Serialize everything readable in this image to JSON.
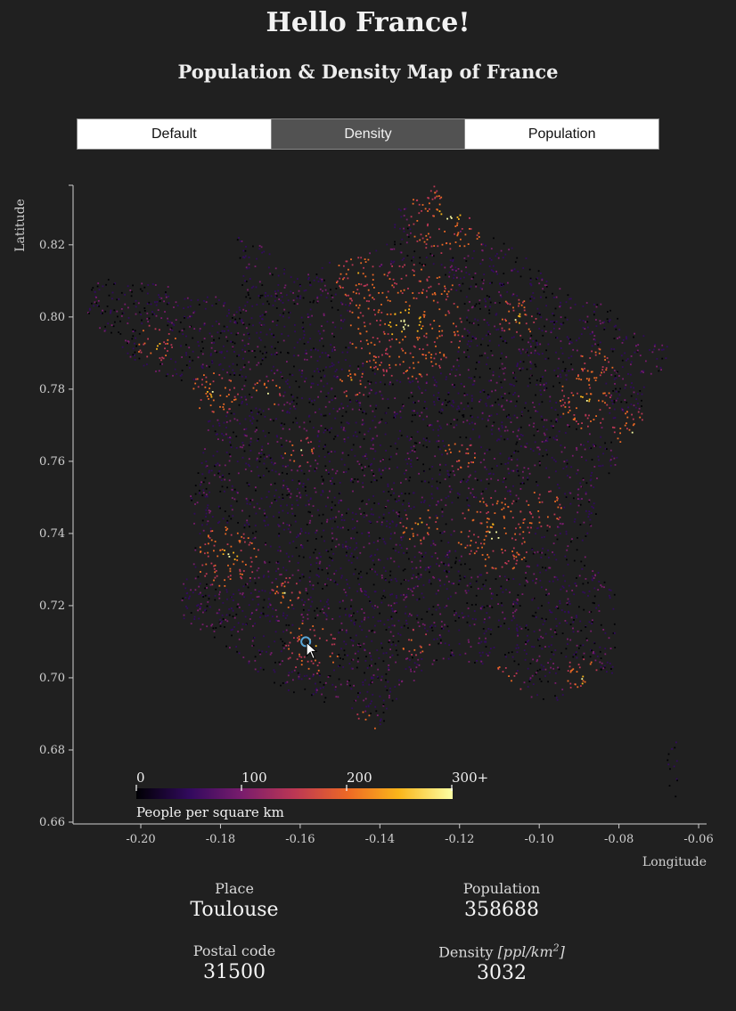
{
  "header": {
    "title": "Hello France!",
    "subtitle": "Population & Density Map of France"
  },
  "tabs": [
    {
      "label": "Default",
      "active": false
    },
    {
      "label": "Density",
      "active": true
    },
    {
      "label": "Population",
      "active": false
    }
  ],
  "map": {
    "y_axis_label": "Latitude",
    "x_axis_label": "Longitude",
    "x_ticks": [
      "-0.20",
      "-0.18",
      "-0.16",
      "-0.14",
      "-0.12",
      "-0.10",
      "-0.08",
      "-0.06"
    ],
    "y_ticks": [
      "0.66",
      "0.68",
      "0.70",
      "0.72",
      "0.74",
      "0.76",
      "0.78",
      "0.80",
      "0.82"
    ],
    "x_range": [
      -0.217,
      -0.058
    ],
    "y_range": [
      0.6595,
      0.8365
    ],
    "legend": {
      "ticks": [
        "0",
        "100",
        "200",
        "300+"
      ],
      "title": "People per square km",
      "colors": [
        "#000004",
        "#320a5e",
        "#781c6d",
        "#bc3754",
        "#ed6925",
        "#fbb61a",
        "#fcffa4"
      ]
    },
    "hover_marker": {
      "lon": -0.1586,
      "lat": 0.71,
      "color": "#5aa7d8"
    }
  },
  "info": {
    "place_label": "Place",
    "place_value": "Toulouse",
    "population_label": "Population",
    "population_value": "358688",
    "postal_label": "Postal code",
    "postal_value": "31500",
    "density_label": "Density",
    "density_unit_prefix": "[ppl/km",
    "density_unit_exp": "2",
    "density_unit_suffix": "]",
    "density_value": "3032"
  }
}
